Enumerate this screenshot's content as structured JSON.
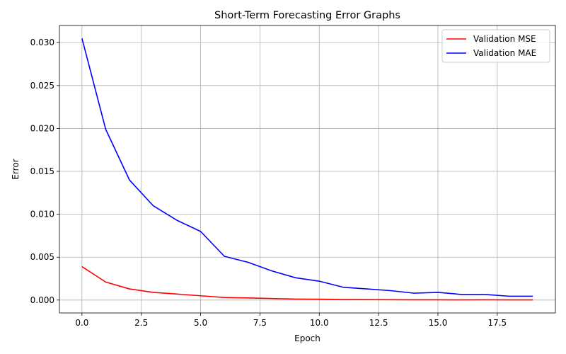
{
  "chart_data": {
    "type": "line",
    "title": "Short-Term Forecasting Error Graphs",
    "xlabel": "Epoch",
    "ylabel": "Error",
    "xlim": [
      -0.95,
      19.95
    ],
    "ylim": [
      -0.0015,
      0.032
    ],
    "xticks": [
      0.0,
      2.5,
      5.0,
      7.5,
      10.0,
      12.5,
      15.0,
      17.5
    ],
    "xtick_labels": [
      "0.0",
      "2.5",
      "5.0",
      "7.5",
      "10.0",
      "12.5",
      "15.0",
      "17.5"
    ],
    "yticks": [
      0.0,
      0.005,
      0.01,
      0.015,
      0.02,
      0.025,
      0.03
    ],
    "ytick_labels": [
      "0.000",
      "0.005",
      "0.010",
      "0.015",
      "0.020",
      "0.025",
      "0.030"
    ],
    "grid": true,
    "legend_position": "top-right",
    "x": [
      0,
      1,
      2,
      3,
      4,
      5,
      6,
      7,
      8,
      9,
      10,
      11,
      12,
      13,
      14,
      15,
      16,
      17,
      18,
      19
    ],
    "series": [
      {
        "name": "Validation MSE",
        "color": "#ff0000",
        "values": [
          0.0039,
          0.0021,
          0.0013,
          0.0009,
          0.0007,
          0.0005,
          0.0003,
          0.00025,
          0.00018,
          0.00012,
          0.0001,
          6e-05,
          5e-05,
          4e-05,
          3e-05,
          3e-05,
          2e-05,
          3e-05,
          2e-05,
          2e-05
        ]
      },
      {
        "name": "Validation MAE",
        "color": "#0000ff",
        "values": [
          0.0305,
          0.0199,
          0.014,
          0.011,
          0.0093,
          0.008,
          0.0051,
          0.0044,
          0.0034,
          0.0026,
          0.0022,
          0.0015,
          0.0013,
          0.0011,
          0.0008,
          0.0009,
          0.00065,
          0.00065,
          0.00045,
          0.00045
        ]
      }
    ]
  }
}
